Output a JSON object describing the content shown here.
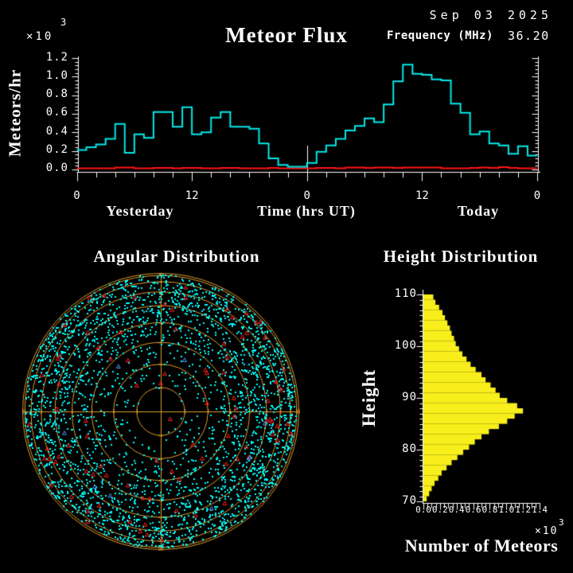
{
  "header": {
    "date": "Sep 03 2025",
    "title": "Meteor Flux",
    "frequency_label": "Frequency (MHz)",
    "frequency_value": "36.20"
  },
  "colors": {
    "background": "#000000",
    "axis": "#ffffff",
    "text": "#ffffff",
    "flux_line": "#00e9e9",
    "noise_line": "#ff1515",
    "polar_rings": "#df9c2c",
    "echo_dots": "#00ffff",
    "red_markers": "#ff2020",
    "blue_markers": "#5599ff",
    "height_bars": "#f7ee1b"
  },
  "chart_data": [
    {
      "id": "flux",
      "type": "line",
      "style": "step",
      "title": "Meteor Flux",
      "ylabel": "Meteors/hr",
      "y_scale_base": "x10",
      "y_scale_exp": "3",
      "ylim": [
        0,
        1.2
      ],
      "y_tick_labels": [
        "1.2",
        "1.0",
        "0.8",
        "0.6",
        "0.4",
        "0.2",
        "0.0"
      ],
      "x_tick_labels": [
        "0",
        "12",
        "0",
        "12",
        "0"
      ],
      "x_section_labels": [
        "Yesterday",
        "Time (hrs UT)",
        "Today"
      ],
      "x_hours_span": 48,
      "grid": false,
      "series": [
        {
          "name": "meteor_rate",
          "color": "#00e9e9",
          "units": "x10^3 meteors/hr",
          "values": [
            0.21,
            0.24,
            0.27,
            0.33,
            0.49,
            0.18,
            0.38,
            0.34,
            0.62,
            0.62,
            0.46,
            0.67,
            0.38,
            0.4,
            0.56,
            0.62,
            0.46,
            0.46,
            0.44,
            0.28,
            0.12,
            0.05,
            0.03,
            0.03,
            0.07,
            0.19,
            0.26,
            0.33,
            0.42,
            0.47,
            0.55,
            0.51,
            0.7,
            0.95,
            1.13,
            1.03,
            1.02,
            0.97,
            0.96,
            0.71,
            0.61,
            0.38,
            0.41,
            0.28,
            0.26,
            0.17,
            0.25,
            0.15
          ]
        },
        {
          "name": "background_noise",
          "color": "#ff1515",
          "units": "x10^3 meteors/hr",
          "values": [
            0.013,
            0.013,
            0.013,
            0.013,
            0.022,
            0.022,
            0.013,
            0.013,
            0.018,
            0.018,
            0.013,
            0.018,
            0.018,
            0.013,
            0.013,
            0.018,
            0.018,
            0.013,
            0.013,
            0.013,
            0.018,
            0.013,
            0.013,
            0.013,
            0.013,
            0.018,
            0.018,
            0.013,
            0.022,
            0.022,
            0.018,
            0.022,
            0.022,
            0.018,
            0.022,
            0.022,
            0.022,
            0.022,
            0.013,
            0.013,
            0.013,
            0.018,
            0.022,
            0.018,
            0.025,
            0.018,
            0.013,
            0.013
          ]
        }
      ]
    },
    {
      "id": "angular",
      "type": "scatter",
      "title": "Angular Distribution",
      "projection": "all-sky polar, r = R*sin(zenith)",
      "ring_elevations_deg": [
        80,
        70,
        60,
        50,
        40,
        30,
        20,
        10,
        0
      ],
      "markers": [
        {
          "name": "meteor_echoes",
          "shape": "dot",
          "color": "#00ffff",
          "count": 3000
        },
        {
          "name": "flagged_echoes",
          "shape": "open-triangle",
          "color": "#ff2020",
          "count": 92
        },
        {
          "name": "rare_echoes",
          "shape": "open-triangle",
          "color": "#5599ff",
          "count": 8
        }
      ],
      "density": "increases toward horizon (outer rim)",
      "seed": 20250903
    },
    {
      "id": "height",
      "type": "bar",
      "orientation": "horizontal",
      "title": "Height Distribution",
      "ylabel": "Height",
      "xlabel": "Number of Meteors",
      "x_scale_base": "x10",
      "x_scale_exp": "3",
      "xlim": [
        0,
        1.4
      ],
      "ylim": [
        70,
        110
      ],
      "x_tick_labels": [
        "0.0",
        "0.2",
        "0.4",
        "0.6",
        "0.8",
        "1.0",
        "1.2",
        "1.4"
      ],
      "y_tick_labels": [
        "110",
        "100",
        "90",
        "80",
        "70"
      ],
      "bin_km": 1,
      "bins_from_km": 110,
      "values": [
        0.12,
        0.145,
        0.19,
        0.23,
        0.26,
        0.29,
        0.32,
        0.34,
        0.37,
        0.39,
        0.43,
        0.47,
        0.52,
        0.57,
        0.63,
        0.7,
        0.75,
        0.81,
        0.87,
        0.92,
        1.01,
        1.13,
        1.2,
        1.1,
        1.01,
        0.91,
        0.79,
        0.7,
        0.62,
        0.55,
        0.48,
        0.41,
        0.34,
        0.28,
        0.22,
        0.18,
        0.135,
        0.1,
        0.07,
        0.04
      ]
    }
  ]
}
